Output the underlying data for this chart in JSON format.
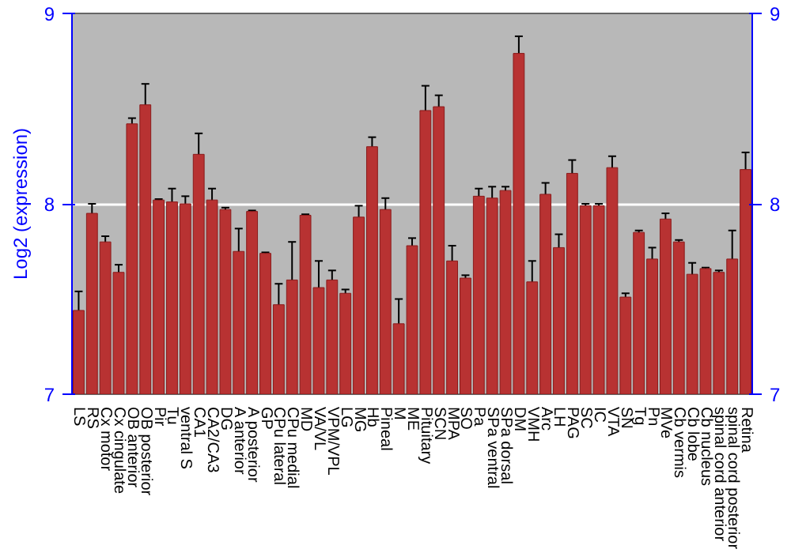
{
  "chart_data": {
    "type": "bar",
    "ylabel": "Log2 (expression)",
    "categories": [
      "LS",
      "RS",
      "Cx motor",
      "Cx cingulate",
      "OB anterior",
      "OB posterior",
      "Pir",
      "Tu",
      "ventral S",
      "CA1",
      "CA2/CA3",
      "DG",
      "A anterior",
      "A posterior",
      "GP",
      "CPu lateral",
      "CPu medial",
      "MD",
      "VA/VL",
      "VPM/VPL",
      "LG",
      "MG",
      "Hb",
      "Pineal",
      "M",
      "ME",
      "Pituitary",
      "SCN",
      "MPA",
      "SO",
      "Pa",
      "SPa ventral",
      "SPa dorsal",
      "DM",
      "VMH",
      "Arc",
      "LH",
      "PAG",
      "SC",
      "IC",
      "VTA",
      "SN",
      "Tg",
      "Pn",
      "MVe",
      "Cb vermis",
      "Cb lobe",
      "Cb nucleus",
      "spinal cord anterior",
      "spinal cord posterior",
      "Retina"
    ],
    "values": [
      7.44,
      7.95,
      7.8,
      7.64,
      8.42,
      8.52,
      8.02,
      8.01,
      8.0,
      8.26,
      8.02,
      7.97,
      7.75,
      7.96,
      7.74,
      7.47,
      7.6,
      7.94,
      7.56,
      7.6,
      7.53,
      7.93,
      8.3,
      7.97,
      7.37,
      7.78,
      8.49,
      8.51,
      7.7,
      7.61,
      8.04,
      8.03,
      8.07,
      8.79,
      7.59,
      8.05,
      7.77,
      8.16,
      7.99,
      7.99,
      8.19,
      7.51,
      7.85,
      7.71,
      7.92,
      7.8,
      7.63,
      7.66,
      7.64,
      7.71,
      8.18
    ],
    "errors": [
      0.1,
      0.05,
      0.03,
      0.04,
      0.03,
      0.11,
      0.005,
      0.07,
      0.04,
      0.11,
      0.06,
      0.01,
      0.12,
      0.005,
      0.005,
      0.11,
      0.2,
      0.005,
      0.14,
      0.05,
      0.02,
      0.06,
      0.05,
      0.06,
      0.13,
      0.04,
      0.13,
      0.06,
      0.08,
      0.015,
      0.04,
      0.06,
      0.02,
      0.09,
      0.11,
      0.06,
      0.07,
      0.07,
      0.01,
      0.01,
      0.06,
      0.02,
      0.01,
      0.06,
      0.03,
      0.01,
      0.06,
      0.005,
      0.01,
      0.15,
      0.09
    ],
    "color": "#b83232",
    "ylim": [
      7,
      9
    ],
    "yticks": [
      7,
      8,
      9
    ],
    "y2lim": [
      7,
      9
    ],
    "y2ticks": [
      7,
      8,
      9
    ],
    "grid": "y"
  }
}
